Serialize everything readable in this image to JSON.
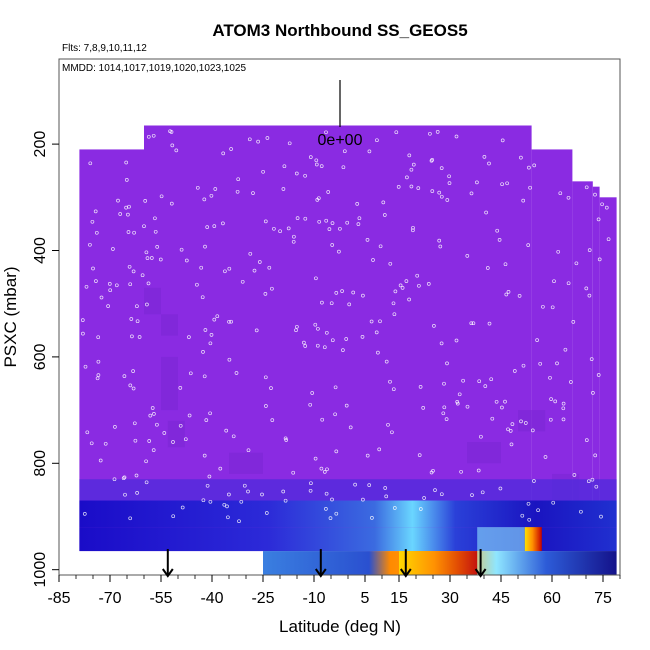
{
  "chart_data": {
    "type": "heatmap",
    "title": "ATOM3 Northbound SS_GEOS5",
    "flights_label": "Flts: 7,8,9,10,11,12",
    "dates_label": "MMDD: 1014,1017,1019,1020,1023,1025",
    "scale_label": "0e+00",
    "xlabel": "Latitude (deg N)",
    "ylabel": "PSXC (mbar)",
    "xlim": [
      -85,
      80
    ],
    "ylim": [
      1010,
      40
    ],
    "x_ticks": [
      -85,
      -70,
      -55,
      -40,
      -25,
      -10,
      5,
      15,
      30,
      45,
      60,
      75
    ],
    "y_ticks": [
      200,
      400,
      600,
      800,
      1000
    ],
    "colors": {
      "background_field": "#8a2be2",
      "low": "#1a0cc8",
      "mid": "#5fd0ff",
      "high": "#ff9a00",
      "max": "#d40000"
    },
    "curtain_columns": [
      {
        "lat_from": -79,
        "lat_to": -65,
        "p_top": 210
      },
      {
        "lat_from": -65,
        "lat_to": -60,
        "p_top": 210
      },
      {
        "lat_from": -60,
        "lat_to": 54,
        "p_top": 165
      },
      {
        "lat_from": 54,
        "lat_to": 66,
        "p_top": 210
      },
      {
        "lat_from": 66,
        "lat_to": 72,
        "p_top": 270
      },
      {
        "lat_from": 72,
        "lat_to": 74,
        "p_top": 280
      },
      {
        "lat_from": 74,
        "lat_to": 79,
        "p_top": 300
      }
    ],
    "boundary_layer_bands": [
      {
        "lat_from": -79,
        "lat_to": 79,
        "p_from": 870,
        "p_to": 920,
        "value": 0.15
      },
      {
        "lat_from": -79,
        "lat_to": 79,
        "p_from": 920,
        "p_to": 965,
        "value": 0.3
      },
      {
        "lat_from": -25,
        "lat_to": 79,
        "p_from": 965,
        "p_to": 1010,
        "value": 0.45
      },
      {
        "lat_from": 15,
        "lat_to": 38,
        "p_from": 965,
        "p_to": 1010,
        "value": 0.8
      },
      {
        "lat_from": 38,
        "lat_to": 52,
        "p_from": 920,
        "p_to": 965,
        "value": 0.65
      },
      {
        "lat_from": 52,
        "lat_to": 57,
        "p_from": 920,
        "p_to": 965,
        "value": 1.0
      }
    ],
    "arrow_latitudes": [
      -53,
      -8,
      17,
      39
    ]
  }
}
